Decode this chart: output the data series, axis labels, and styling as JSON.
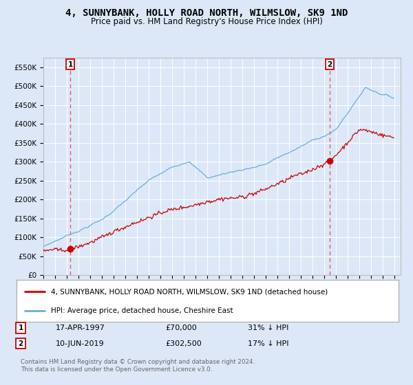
{
  "title": "4, SUNNYBANK, HOLLY ROAD NORTH, WILMSLOW, SK9 1ND",
  "subtitle": "Price paid vs. HM Land Registry's House Price Index (HPI)",
  "title_fontsize": 10,
  "subtitle_fontsize": 8.5,
  "background_color": "#dce8f8",
  "plot_bg_color": "#dce8f8",
  "ylabel": "",
  "ylim": [
    0,
    575000
  ],
  "yticks": [
    0,
    50000,
    100000,
    150000,
    200000,
    250000,
    300000,
    350000,
    400000,
    450000,
    500000,
    550000
  ],
  "ytick_labels": [
    "£0",
    "£50K",
    "£100K",
    "£150K",
    "£200K",
    "£250K",
    "£300K",
    "£350K",
    "£400K",
    "£450K",
    "£500K",
    "£550K"
  ],
  "xmin": 1995.0,
  "xmax": 2025.5,
  "hpi_color": "#6baed6",
  "price_color": "#cc0000",
  "marker_color": "#cc0000",
  "dashed_line_color": "#e06060",
  "transaction1_x": 1997.29,
  "transaction1_y": 70000,
  "transaction1_label": "1",
  "transaction1_date": "17-APR-1997",
  "transaction1_price": "£70,000",
  "transaction1_hpi": "31% ↓ HPI",
  "transaction2_x": 2019.44,
  "transaction2_y": 302500,
  "transaction2_label": "2",
  "transaction2_date": "10-JUN-2019",
  "transaction2_price": "£302,500",
  "transaction2_hpi": "17% ↓ HPI",
  "legend_line1": "4, SUNNYBANK, HOLLY ROAD NORTH, WILMSLOW, SK9 1ND (detached house)",
  "legend_line2": "HPI: Average price, detached house, Cheshire East",
  "footer1": "Contains HM Land Registry data © Crown copyright and database right 2024.",
  "footer2": "This data is licensed under the Open Government Licence v3.0."
}
